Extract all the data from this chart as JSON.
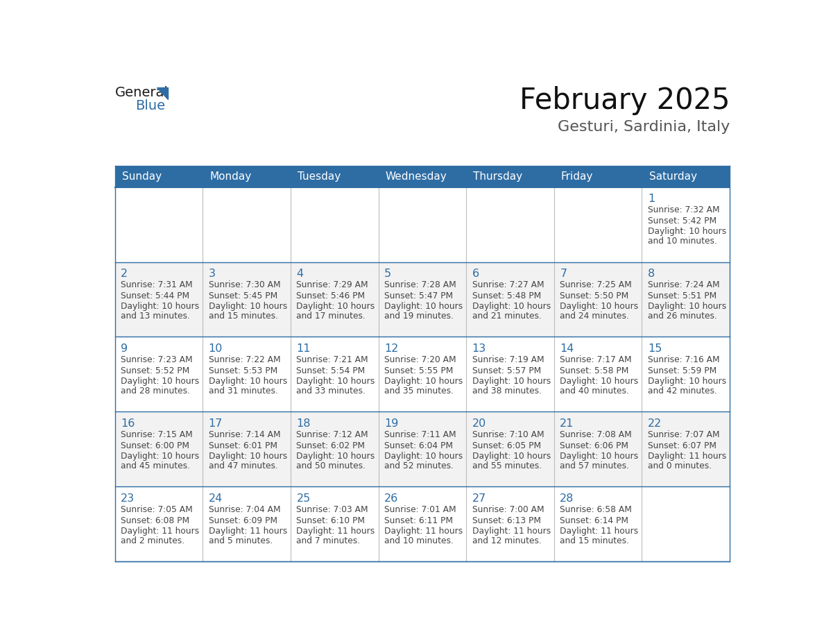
{
  "title": "February 2025",
  "subtitle": "Gesturi, Sardinia, Italy",
  "header_color": "#2E6DA4",
  "header_text_color": "#FFFFFF",
  "days_of_week": [
    "Sunday",
    "Monday",
    "Tuesday",
    "Wednesday",
    "Thursday",
    "Friday",
    "Saturday"
  ],
  "background_color": "#FFFFFF",
  "cell_bg_light": "#F2F2F2",
  "cell_bg_white": "#FFFFFF",
  "border_color": "#2E6DA4",
  "day_number_color": "#2E6DA4",
  "text_color": "#444444",
  "logo_general_color": "#1a1a1a",
  "logo_blue_color": "#2E6DA4",
  "calendar_data": [
    [
      null,
      null,
      null,
      null,
      null,
      null,
      {
        "day": "1",
        "sunrise": "7:32 AM",
        "sunset": "5:42 PM",
        "daylight_line1": "Daylight: 10 hours",
        "daylight_line2": "and 10 minutes."
      }
    ],
    [
      {
        "day": "2",
        "sunrise": "7:31 AM",
        "sunset": "5:44 PM",
        "daylight_line1": "Daylight: 10 hours",
        "daylight_line2": "and 13 minutes."
      },
      {
        "day": "3",
        "sunrise": "7:30 AM",
        "sunset": "5:45 PM",
        "daylight_line1": "Daylight: 10 hours",
        "daylight_line2": "and 15 minutes."
      },
      {
        "day": "4",
        "sunrise": "7:29 AM",
        "sunset": "5:46 PM",
        "daylight_line1": "Daylight: 10 hours",
        "daylight_line2": "and 17 minutes."
      },
      {
        "day": "5",
        "sunrise": "7:28 AM",
        "sunset": "5:47 PM",
        "daylight_line1": "Daylight: 10 hours",
        "daylight_line2": "and 19 minutes."
      },
      {
        "day": "6",
        "sunrise": "7:27 AM",
        "sunset": "5:48 PM",
        "daylight_line1": "Daylight: 10 hours",
        "daylight_line2": "and 21 minutes."
      },
      {
        "day": "7",
        "sunrise": "7:25 AM",
        "sunset": "5:50 PM",
        "daylight_line1": "Daylight: 10 hours",
        "daylight_line2": "and 24 minutes."
      },
      {
        "day": "8",
        "sunrise": "7:24 AM",
        "sunset": "5:51 PM",
        "daylight_line1": "Daylight: 10 hours",
        "daylight_line2": "and 26 minutes."
      }
    ],
    [
      {
        "day": "9",
        "sunrise": "7:23 AM",
        "sunset": "5:52 PM",
        "daylight_line1": "Daylight: 10 hours",
        "daylight_line2": "and 28 minutes."
      },
      {
        "day": "10",
        "sunrise": "7:22 AM",
        "sunset": "5:53 PM",
        "daylight_line1": "Daylight: 10 hours",
        "daylight_line2": "and 31 minutes."
      },
      {
        "day": "11",
        "sunrise": "7:21 AM",
        "sunset": "5:54 PM",
        "daylight_line1": "Daylight: 10 hours",
        "daylight_line2": "and 33 minutes."
      },
      {
        "day": "12",
        "sunrise": "7:20 AM",
        "sunset": "5:55 PM",
        "daylight_line1": "Daylight: 10 hours",
        "daylight_line2": "and 35 minutes."
      },
      {
        "day": "13",
        "sunrise": "7:19 AM",
        "sunset": "5:57 PM",
        "daylight_line1": "Daylight: 10 hours",
        "daylight_line2": "and 38 minutes."
      },
      {
        "day": "14",
        "sunrise": "7:17 AM",
        "sunset": "5:58 PM",
        "daylight_line1": "Daylight: 10 hours",
        "daylight_line2": "and 40 minutes."
      },
      {
        "day": "15",
        "sunrise": "7:16 AM",
        "sunset": "5:59 PM",
        "daylight_line1": "Daylight: 10 hours",
        "daylight_line2": "and 42 minutes."
      }
    ],
    [
      {
        "day": "16",
        "sunrise": "7:15 AM",
        "sunset": "6:00 PM",
        "daylight_line1": "Daylight: 10 hours",
        "daylight_line2": "and 45 minutes."
      },
      {
        "day": "17",
        "sunrise": "7:14 AM",
        "sunset": "6:01 PM",
        "daylight_line1": "Daylight: 10 hours",
        "daylight_line2": "and 47 minutes."
      },
      {
        "day": "18",
        "sunrise": "7:12 AM",
        "sunset": "6:02 PM",
        "daylight_line1": "Daylight: 10 hours",
        "daylight_line2": "and 50 minutes."
      },
      {
        "day": "19",
        "sunrise": "7:11 AM",
        "sunset": "6:04 PM",
        "daylight_line1": "Daylight: 10 hours",
        "daylight_line2": "and 52 minutes."
      },
      {
        "day": "20",
        "sunrise": "7:10 AM",
        "sunset": "6:05 PM",
        "daylight_line1": "Daylight: 10 hours",
        "daylight_line2": "and 55 minutes."
      },
      {
        "day": "21",
        "sunrise": "7:08 AM",
        "sunset": "6:06 PM",
        "daylight_line1": "Daylight: 10 hours",
        "daylight_line2": "and 57 minutes."
      },
      {
        "day": "22",
        "sunrise": "7:07 AM",
        "sunset": "6:07 PM",
        "daylight_line1": "Daylight: 11 hours",
        "daylight_line2": "and 0 minutes."
      }
    ],
    [
      {
        "day": "23",
        "sunrise": "7:05 AM",
        "sunset": "6:08 PM",
        "daylight_line1": "Daylight: 11 hours",
        "daylight_line2": "and 2 minutes."
      },
      {
        "day": "24",
        "sunrise": "7:04 AM",
        "sunset": "6:09 PM",
        "daylight_line1": "Daylight: 11 hours",
        "daylight_line2": "and 5 minutes."
      },
      {
        "day": "25",
        "sunrise": "7:03 AM",
        "sunset": "6:10 PM",
        "daylight_line1": "Daylight: 11 hours",
        "daylight_line2": "and 7 minutes."
      },
      {
        "day": "26",
        "sunrise": "7:01 AM",
        "sunset": "6:11 PM",
        "daylight_line1": "Daylight: 11 hours",
        "daylight_line2": "and 10 minutes."
      },
      {
        "day": "27",
        "sunrise": "7:00 AM",
        "sunset": "6:13 PM",
        "daylight_line1": "Daylight: 11 hours",
        "daylight_line2": "and 12 minutes."
      },
      {
        "day": "28",
        "sunrise": "6:58 AM",
        "sunset": "6:14 PM",
        "daylight_line1": "Daylight: 11 hours",
        "daylight_line2": "and 15 minutes."
      },
      null
    ]
  ]
}
